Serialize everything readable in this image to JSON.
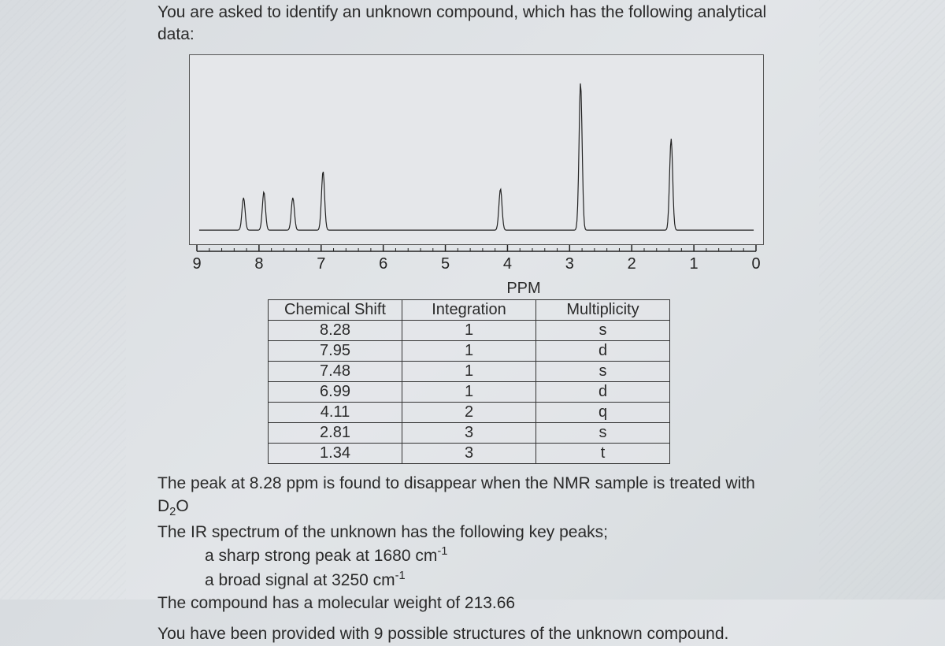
{
  "intro_line1": "You are asked to identify an unknown compound, which has the following analytical",
  "intro_line2": "data:",
  "spectrum": {
    "background": "#e5e7ea",
    "border": "#555555",
    "line_color": "#222222",
    "peaks": [
      {
        "ppm": 8.28,
        "height": 0.22
      },
      {
        "ppm": 7.95,
        "height": 0.26
      },
      {
        "ppm": 7.48,
        "height": 0.22
      },
      {
        "ppm": 6.99,
        "height": 0.4
      },
      {
        "ppm": 4.11,
        "height": 0.28
      },
      {
        "ppm": 2.81,
        "height": 1.0
      },
      {
        "ppm": 1.34,
        "height": 0.62
      }
    ]
  },
  "axis": {
    "min": 0,
    "max": 9,
    "ticks": [
      9,
      8,
      7,
      6,
      5,
      4,
      3,
      2,
      1,
      0
    ],
    "label": "PPM"
  },
  "table": {
    "headers": [
      "Chemical Shift",
      "Integration",
      "Multiplicity"
    ],
    "rows": [
      [
        "8.28",
        "1",
        "s"
      ],
      [
        "7.95",
        "1",
        "d"
      ],
      [
        "7.48",
        "1",
        "s"
      ],
      [
        "6.99",
        "1",
        "d"
      ],
      [
        "4.11",
        "2",
        "q"
      ],
      [
        "2.81",
        "3",
        "s"
      ],
      [
        "1.34",
        "3",
        "t"
      ]
    ]
  },
  "text": {
    "d2o_line1": "The peak at 8.28 ppm is found to disappear when the NMR sample is treated with",
    "d2o_line2": "D",
    "d2o_line2_sub": "2",
    "d2o_line2_end": "O",
    "ir_intro": "The IR spectrum of the unknown has the following key peaks;",
    "ir_peak1_pre": "a sharp strong peak at 1680 cm",
    "ir_peak1_sup": "-1",
    "ir_peak2_pre": "a broad signal at 3250 cm",
    "ir_peak2_sup": "-1",
    "mw": "The compound has a molecular weight of 213.66",
    "final": "You have been provided with 9 possible structures of the unknown compound."
  }
}
